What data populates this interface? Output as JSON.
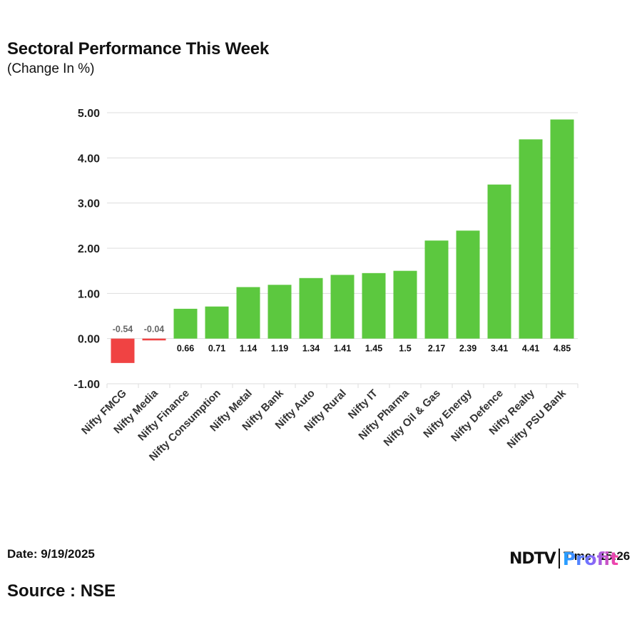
{
  "header": {
    "title": "Sectoral Performance This Week",
    "subtitle": "(Change In %)"
  },
  "footer": {
    "date": "Date: 9/19/2025",
    "source": "Source : NSE",
    "time": "Time: 15:26",
    "logo_left": "NDTV",
    "logo_right": "Profit"
  },
  "colors": {
    "positive": "#5cc83f",
    "negative": "#f04343",
    "grid": "#dddddd"
  },
  "chart_data": {
    "type": "bar",
    "title": "Sectoral Performance This Week",
    "subtitle": "(Change In %)",
    "categories": [
      "Nifty FMCG",
      "Nifty Media",
      "Nifty Finance",
      "Nifty Consumption",
      "Nifty Metal",
      "Nifty Bank",
      "Nifty Auto",
      "Nifty Rural",
      "Nifty IT",
      "Nifty Pharma",
      "Nifty Oil & Gas",
      "Nifty Energy",
      "Nifty Defence",
      "Nifty Realty",
      "Nifty PSU Bank"
    ],
    "values": [
      -0.54,
      -0.04,
      0.66,
      0.71,
      1.14,
      1.19,
      1.34,
      1.41,
      1.45,
      1.5,
      2.17,
      2.39,
      3.41,
      4.41,
      4.85
    ],
    "value_labels": [
      "-0.54",
      "-0.04",
      "0.66",
      "0.71",
      "1.14",
      "1.19",
      "1.34",
      "1.41",
      "1.45",
      "1.5",
      "2.17",
      "2.39",
      "3.41",
      "4.41",
      "4.85"
    ],
    "ylim": [
      -1,
      5
    ],
    "yticks": [
      -1,
      0,
      1,
      2,
      3,
      4,
      5
    ],
    "ytick_labels": [
      "-1.00",
      "0.00",
      "1.00",
      "2.00",
      "3.00",
      "4.00",
      "5.00"
    ],
    "xlabel": "",
    "ylabel": "",
    "grid": true,
    "legend": "none"
  }
}
